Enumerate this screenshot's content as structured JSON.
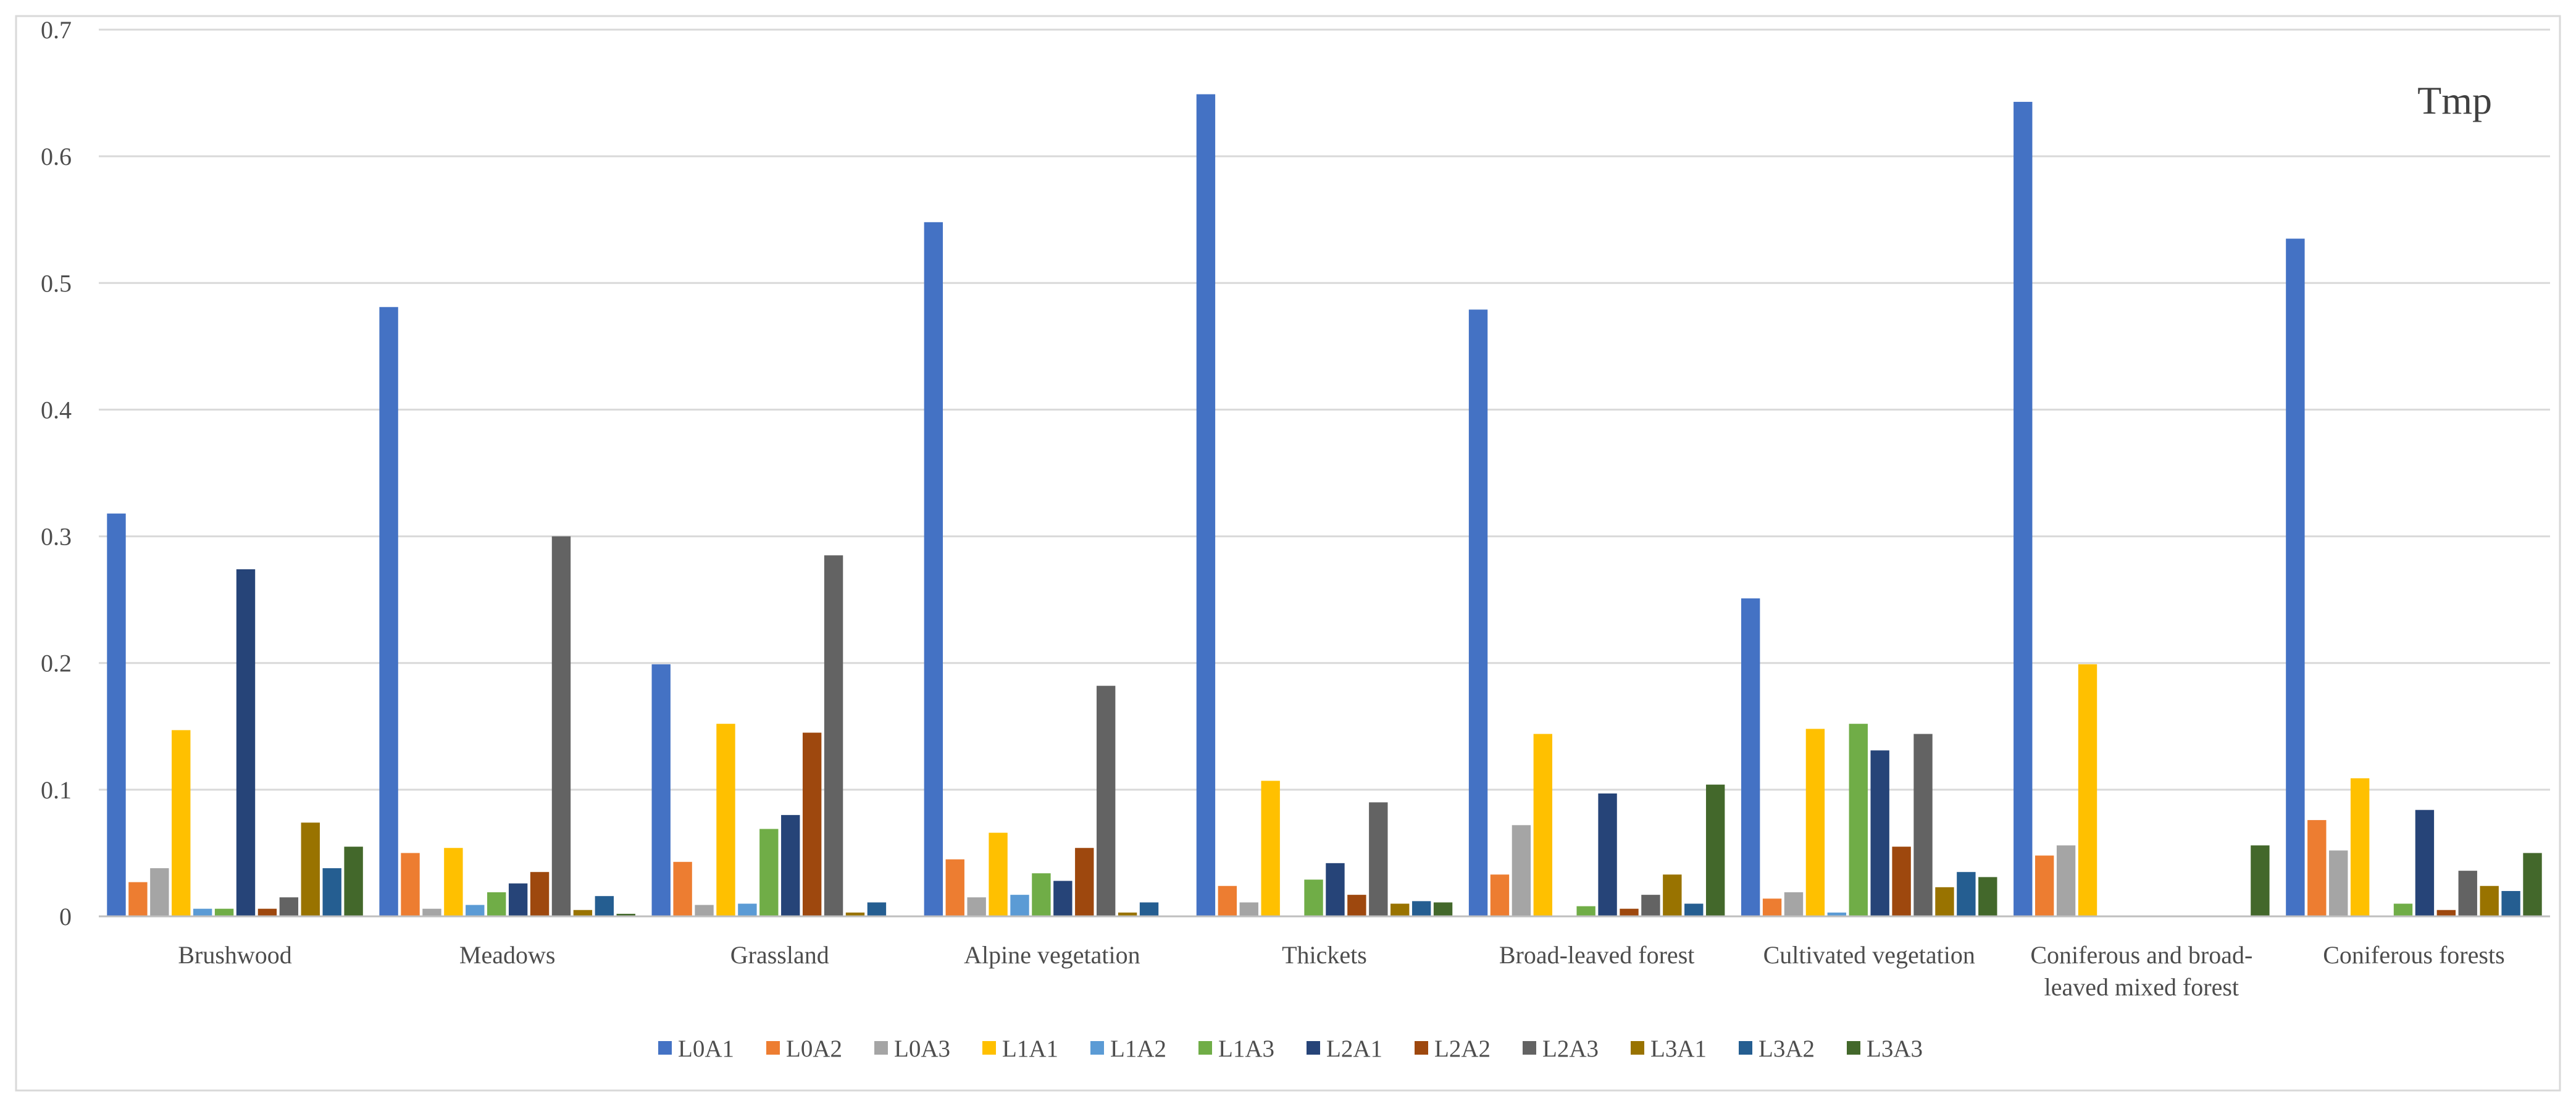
{
  "chart_data": {
    "type": "bar",
    "title": "Tmp",
    "xlabel": "",
    "ylabel": "",
    "ylim": [
      0,
      0.7
    ],
    "yticks": [
      "0",
      "0.1",
      "0.2",
      "0.3",
      "0.4",
      "0.5",
      "0.6",
      "0.7"
    ],
    "grid": true,
    "legend_position": "bottom",
    "categories": [
      [
        "Brushwood"
      ],
      [
        "Meadows"
      ],
      [
        "Grassland"
      ],
      [
        "Alpine vegetation"
      ],
      [
        "Thickets"
      ],
      [
        "Broad-leaved forest"
      ],
      [
        "Cultivated vegetation"
      ],
      [
        "Coniferous and broad-",
        "leaved mixed forest"
      ],
      [
        "Coniferous forests"
      ]
    ],
    "series": [
      {
        "name": "L0A1",
        "color": "#4472C4",
        "values": [
          0.318,
          0.481,
          0.199,
          0.548,
          0.649,
          0.479,
          0.251,
          0.643,
          0.535
        ]
      },
      {
        "name": "L0A2",
        "color": "#ED7D31",
        "values": [
          0.027,
          0.05,
          0.043,
          0.045,
          0.024,
          0.033,
          0.014,
          0.048,
          0.076
        ]
      },
      {
        "name": "L0A3",
        "color": "#A5A5A5",
        "values": [
          0.038,
          0.006,
          0.009,
          0.015,
          0.011,
          0.072,
          0.019,
          0.056,
          0.052
        ]
      },
      {
        "name": "L1A1",
        "color": "#FFC000",
        "values": [
          0.147,
          0.054,
          0.152,
          0.066,
          0.107,
          0.144,
          0.148,
          0.199,
          0.109
        ]
      },
      {
        "name": "L1A2",
        "color": "#5B9BD5",
        "values": [
          0.006,
          0.009,
          0.01,
          0.017,
          0.0,
          0.0,
          0.003,
          0.0,
          0.0
        ]
      },
      {
        "name": "L1A3",
        "color": "#70AD47",
        "values": [
          0.006,
          0.019,
          0.069,
          0.034,
          0.029,
          0.008,
          0.152,
          0.0,
          0.01
        ]
      },
      {
        "name": "L2A1",
        "color": "#264478",
        "values": [
          0.274,
          0.026,
          0.08,
          0.028,
          0.042,
          0.097,
          0.131,
          0.0,
          0.084
        ]
      },
      {
        "name": "L2A2",
        "color": "#9E480E",
        "values": [
          0.006,
          0.035,
          0.145,
          0.054,
          0.017,
          0.006,
          0.055,
          0.0,
          0.005
        ]
      },
      {
        "name": "L2A3",
        "color": "#636363",
        "values": [
          0.015,
          0.3,
          0.285,
          0.182,
          0.09,
          0.017,
          0.144,
          0.0,
          0.036
        ]
      },
      {
        "name": "L3A1",
        "color": "#997300",
        "values": [
          0.074,
          0.005,
          0.003,
          0.003,
          0.01,
          0.033,
          0.023,
          0.0,
          0.024
        ]
      },
      {
        "name": "L3A2",
        "color": "#255E91",
        "values": [
          0.038,
          0.016,
          0.011,
          0.011,
          0.012,
          0.01,
          0.035,
          0.0,
          0.02
        ]
      },
      {
        "name": "L3A3",
        "color": "#43682B",
        "values": [
          0.055,
          0.002,
          0.0,
          0.0,
          0.011,
          0.104,
          0.031,
          0.056,
          0.05
        ]
      }
    ]
  }
}
